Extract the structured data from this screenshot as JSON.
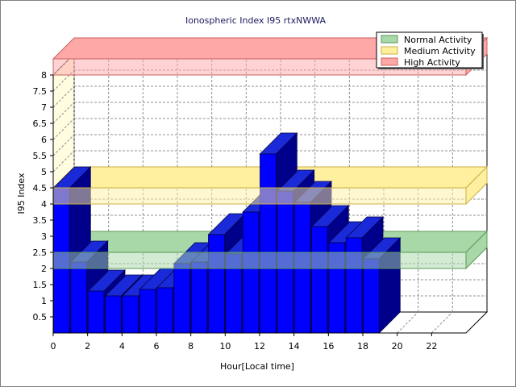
{
  "chart_data": {
    "type": "bar",
    "title": "Ionospheric Index I95 rtxNWWA",
    "xlabel": "Hour[Local time]",
    "ylabel": "I95 Index",
    "x_range": [
      0,
      24
    ],
    "ylim": [
      0,
      8
    ],
    "x_ticks": [
      "0",
      "2",
      "4",
      "6",
      "8",
      "10",
      "12",
      "14",
      "16",
      "18",
      "20",
      "22"
    ],
    "y_ticks": [
      "0.5",
      "1",
      "1.5",
      "2",
      "2.5",
      "3",
      "3.5",
      "4",
      "4.5",
      "5",
      "5.5",
      "6",
      "6.5",
      "7",
      "7.5",
      "8"
    ],
    "grid": true,
    "legend_position": "top-right",
    "x": [
      0,
      1,
      2,
      3,
      4,
      5,
      6,
      7,
      8,
      9,
      10,
      11,
      12,
      13,
      14,
      15,
      16,
      17,
      18
    ],
    "values": [
      4.5,
      2.2,
      1.3,
      1.15,
      1.15,
      1.35,
      1.4,
      2.15,
      2.2,
      3.05,
      2.45,
      3.75,
      5.55,
      4.4,
      4.05,
      3.3,
      2.8,
      2.95,
      2.3
    ],
    "bar_color": "#0000ff",
    "bands": [
      {
        "name": "Normal Activity",
        "from": 2,
        "to": 2.5,
        "color": "#a8d8a8",
        "edge": "#5a9a5a"
      },
      {
        "name": "Medium Activity",
        "from": 4,
        "to": 4.5,
        "color": "#fff0a0",
        "edge": "#c8b040"
      },
      {
        "name": "High Activity",
        "from": 8,
        "to": 8.5,
        "color": "#ffa8a8",
        "edge": "#c86060"
      }
    ]
  }
}
